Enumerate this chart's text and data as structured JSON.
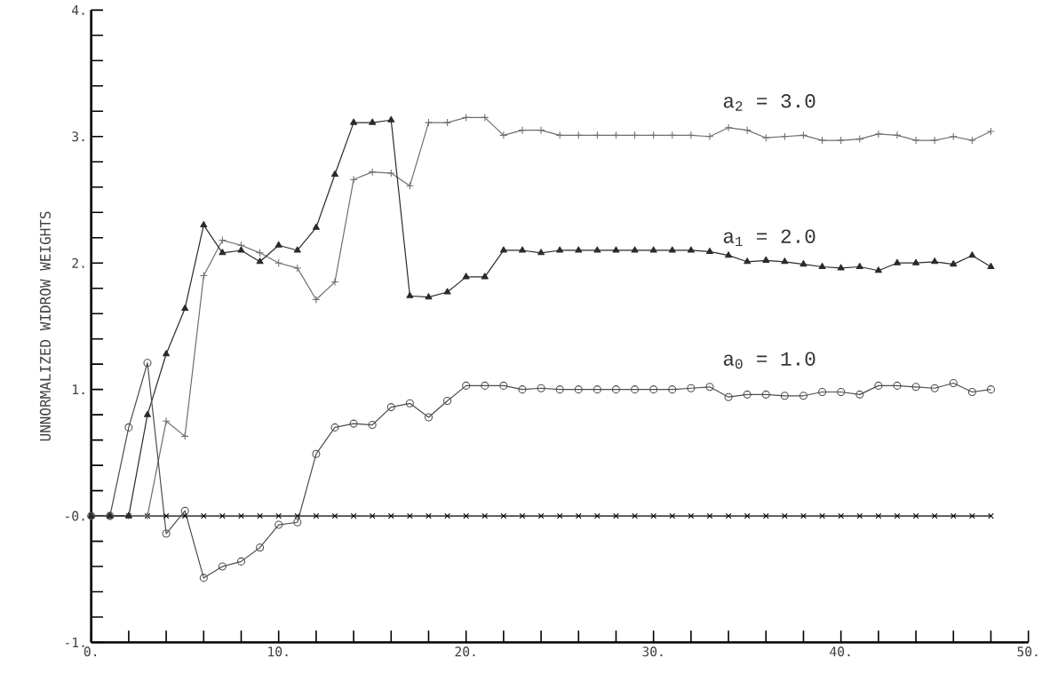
{
  "chart_data": {
    "type": "line",
    "ylabel": "UNNORMALIZED WIDROW WEIGHTS",
    "x": [
      0,
      1,
      2,
      3,
      4,
      5,
      6,
      7,
      8,
      9,
      10,
      11,
      12,
      13,
      14,
      15,
      16,
      17,
      18,
      19,
      20,
      21,
      22,
      23,
      24,
      25,
      26,
      27,
      28,
      29,
      30,
      31,
      32,
      33,
      34,
      35,
      36,
      37,
      38,
      39,
      40,
      41,
      42,
      43,
      44,
      45,
      46,
      47,
      48
    ],
    "series": [
      {
        "color": "#000000",
        "marker": "cross",
        "values": [
          0,
          0,
          0,
          0,
          0,
          0,
          0,
          0,
          0,
          0,
          0,
          0,
          0,
          0,
          0,
          0,
          0,
          0,
          0,
          0,
          0,
          0,
          0,
          0,
          0,
          0,
          0,
          0,
          0,
          0,
          0,
          0,
          0,
          0,
          0,
          0,
          0,
          0,
          0,
          0,
          0,
          0,
          0,
          0,
          0,
          0,
          0,
          0,
          0
        ]
      },
      {
        "name": "a$_{2}$ = 3.0",
        "color": "#6e6e6e",
        "marker": "plus",
        "values": [
          0,
          0,
          0,
          0,
          0.75,
          0.63,
          1.9,
          2.18,
          2.14,
          2.08,
          2.0,
          1.96,
          1.71,
          1.85,
          2.66,
          2.72,
          2.71,
          2.61,
          3.11,
          3.11,
          3.15,
          3.15,
          3.01,
          3.05,
          3.05,
          3.01,
          3.01,
          3.01,
          3.01,
          3.01,
          3.01,
          3.01,
          3.01,
          3.0,
          3.07,
          3.05,
          2.99,
          3.0,
          3.01,
          2.97,
          2.97,
          2.98,
          3.02,
          3.01,
          2.97,
          2.97,
          3.0,
          2.97,
          3.04
        ]
      },
      {
        "name": "a$_{1}$ = 2.0",
        "color": "#2a2a2a",
        "marker": "triangle",
        "values": [
          0,
          0,
          0,
          0.8,
          1.28,
          1.64,
          2.3,
          2.08,
          2.1,
          2.01,
          2.14,
          2.1,
          2.28,
          2.7,
          3.11,
          3.11,
          3.13,
          1.74,
          1.73,
          1.77,
          1.89,
          1.89,
          2.1,
          2.1,
          2.08,
          2.1,
          2.1,
          2.1,
          2.1,
          2.1,
          2.1,
          2.1,
          2.1,
          2.09,
          2.06,
          2.01,
          2.02,
          2.01,
          1.99,
          1.97,
          1.96,
          1.97,
          1.94,
          2.0,
          2.0,
          2.01,
          1.99,
          2.06,
          1.97
        ]
      },
      {
        "name": "a$_{0}$ = 1.0",
        "color": "#4c4c4c",
        "marker": "circle",
        "values": [
          0,
          0,
          0.7,
          1.21,
          -0.14,
          0.04,
          -0.49,
          -0.4,
          -0.36,
          -0.25,
          -0.07,
          -0.05,
          0.49,
          0.7,
          0.73,
          0.72,
          0.86,
          0.89,
          0.78,
          0.91,
          1.03,
          1.03,
          1.03,
          1.0,
          1.01,
          1.0,
          1.0,
          1.0,
          1.0,
          1.0,
          1.0,
          1.0,
          1.01,
          1.02,
          0.94,
          0.96,
          0.96,
          0.95,
          0.95,
          0.98,
          0.98,
          0.96,
          1.03,
          1.03,
          1.02,
          1.01,
          1.05,
          0.98,
          1.0
        ]
      }
    ],
    "xlim": [
      0,
      50
    ],
    "xticks": [
      {
        "value": 0,
        "label": "0."
      },
      {
        "value": 2,
        "label": null
      },
      {
        "value": 4,
        "label": null
      },
      {
        "value": 6,
        "label": null
      },
      {
        "value": 8,
        "label": null
      },
      {
        "value": 10,
        "label": "10."
      },
      {
        "value": 12,
        "label": null
      },
      {
        "value": 14,
        "label": null
      },
      {
        "value": 16,
        "label": null
      },
      {
        "value": 18,
        "label": null
      },
      {
        "value": 20,
        "label": "20."
      },
      {
        "value": 22,
        "label": null
      },
      {
        "value": 24,
        "label": null
      },
      {
        "value": 26,
        "label": null
      },
      {
        "value": 28,
        "label": null
      },
      {
        "value": 30,
        "label": "30."
      },
      {
        "value": 32,
        "label": null
      },
      {
        "value": 34,
        "label": null
      },
      {
        "value": 36,
        "label": null
      },
      {
        "value": 38,
        "label": null
      },
      {
        "value": 40,
        "label": "40."
      },
      {
        "value": 42,
        "label": null
      },
      {
        "value": 44,
        "label": null
      },
      {
        "value": 46,
        "label": null
      },
      {
        "value": 48,
        "label": null
      },
      {
        "value": 50,
        "label": "50."
      }
    ],
    "ylim": [
      -1,
      4
    ],
    "yticks": [
      {
        "value": -1,
        "label": "-1."
      },
      {
        "value": -0.8,
        "label": null
      },
      {
        "value": -0.6,
        "label": null
      },
      {
        "value": -0.4,
        "label": null
      },
      {
        "value": -0.2,
        "label": null
      },
      {
        "value": 0,
        "label": "-0."
      },
      {
        "value": 0.2,
        "label": null
      },
      {
        "value": 0.4,
        "label": null
      },
      {
        "value": 0.6,
        "label": null
      },
      {
        "value": 0.8,
        "label": null
      },
      {
        "value": 1,
        "label": "1."
      },
      {
        "value": 1.2,
        "label": null
      },
      {
        "value": 1.4,
        "label": null
      },
      {
        "value": 1.6,
        "label": null
      },
      {
        "value": 1.8,
        "label": null
      },
      {
        "value": 2,
        "label": "2."
      },
      {
        "value": 2.2,
        "label": null
      },
      {
        "value": 2.4,
        "label": null
      },
      {
        "value": 2.6,
        "label": null
      },
      {
        "value": 2.8,
        "label": null
      },
      {
        "value": 3,
        "label": "3."
      },
      {
        "value": 3.2,
        "label": null
      },
      {
        "value": 3.4,
        "label": null
      },
      {
        "value": 3.6,
        "label": null
      },
      {
        "value": 3.8,
        "label": null
      },
      {
        "value": 4,
        "label": "4."
      }
    ],
    "grid": false,
    "line_style": "solid"
  }
}
